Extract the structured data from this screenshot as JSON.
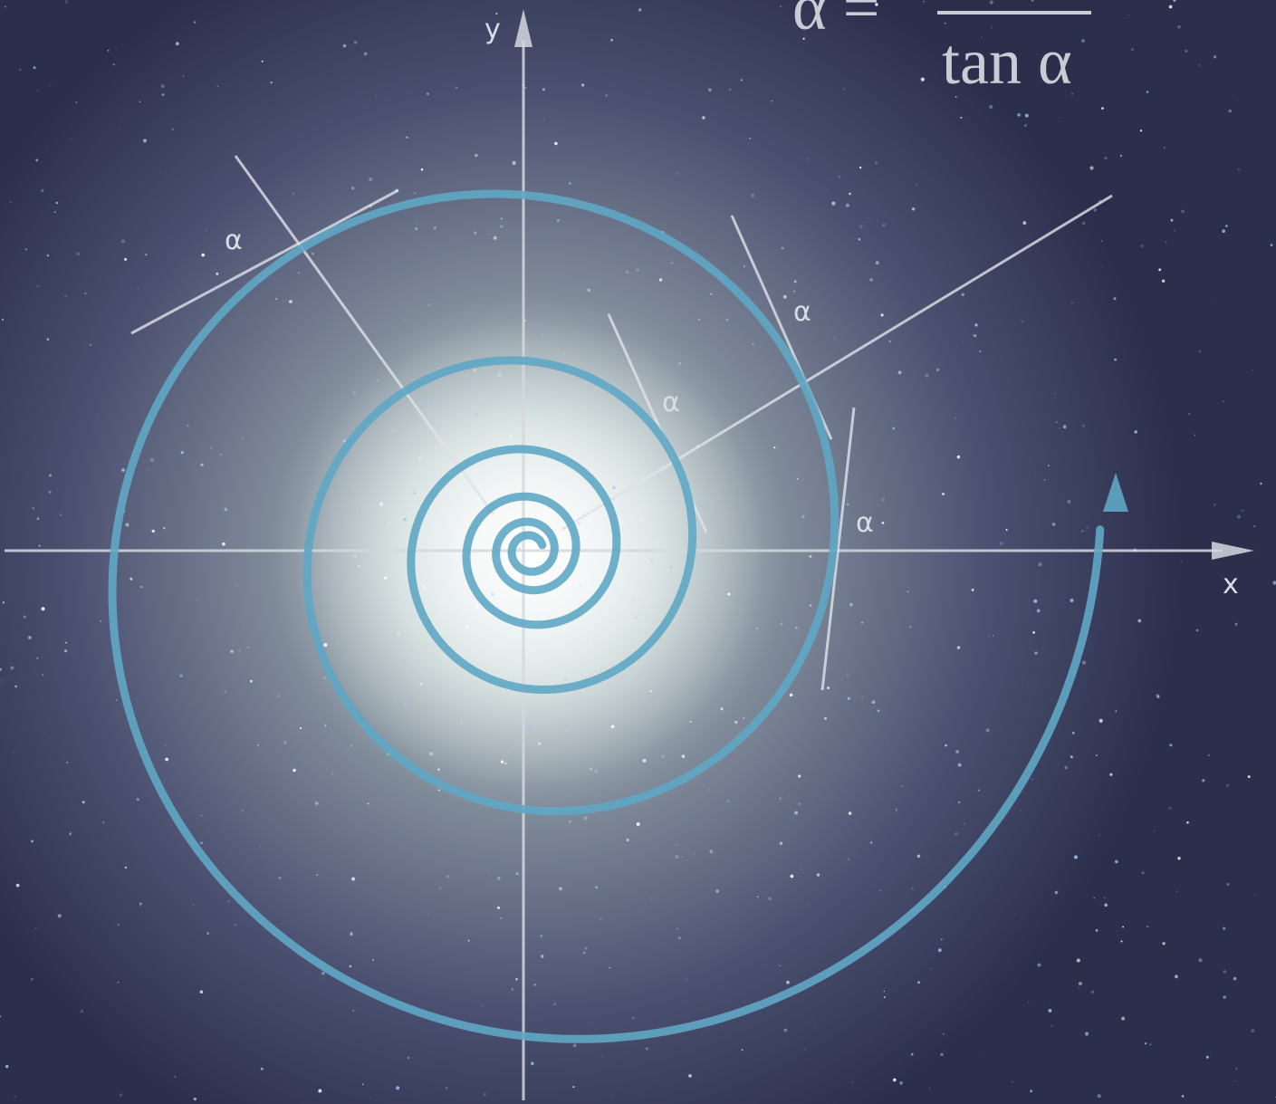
{
  "axes": {
    "x_label": "x",
    "y_label": "y"
  },
  "angle_labels": [
    "α",
    "α",
    "α",
    "α"
  ],
  "formula": {
    "lhs": "α =",
    "denominator": "tan α"
  }
}
